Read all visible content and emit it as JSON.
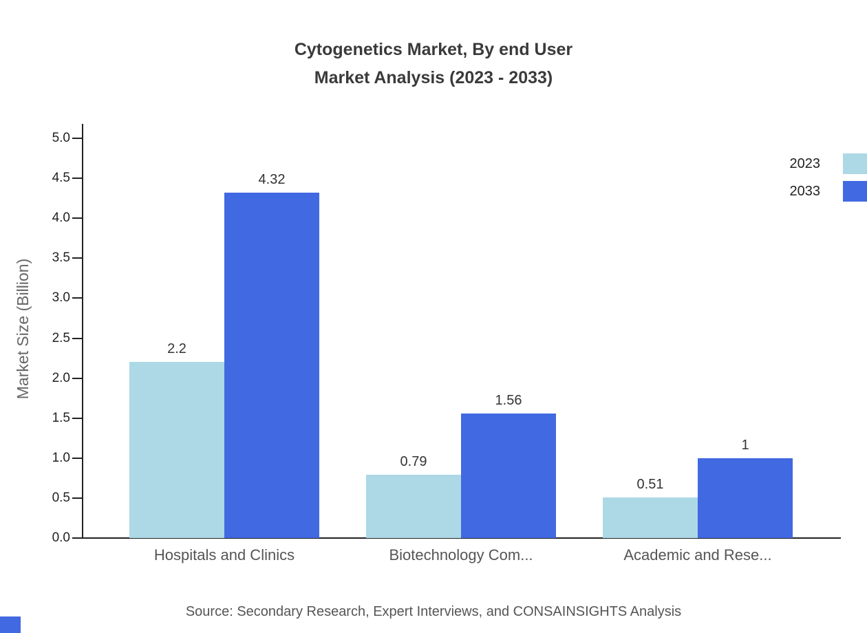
{
  "title": {
    "line1": "Cytogenetics Market, By end User",
    "line2": "Market Analysis (2023 - 2033)"
  },
  "source": "Source: Secondary Research, Expert Interviews, and CONSAINSIGHTS Analysis",
  "chart_data": {
    "type": "bar",
    "title": "Cytogenetics Market, By end User Market Analysis (2023 - 2033)",
    "categories": [
      "Hospitals and Clinics",
      "Biotechnology Com...",
      "Academic and Rese..."
    ],
    "series": [
      {
        "name": "2023",
        "color": "#add8e6",
        "values": [
          2.2,
          0.79,
          0.51
        ]
      },
      {
        "name": "2033",
        "color": "#4169e1",
        "values": [
          4.32,
          1.56,
          1
        ]
      }
    ],
    "value_labels": [
      [
        "2.2",
        "0.79",
        "0.51"
      ],
      [
        "4.32",
        "1.56",
        "1"
      ]
    ],
    "xlabel": "",
    "ylabel": "Market Size (Billion)",
    "ylim": [
      0,
      5
    ],
    "ytick_step": 0.5,
    "ytick_labels": [
      "0.0",
      "0.5",
      "1.0",
      "1.5",
      "2.0",
      "2.5",
      "3.0",
      "3.5",
      "4.0",
      "4.5",
      "5.0"
    ],
    "grid": false,
    "legend_position": "top-right"
  }
}
